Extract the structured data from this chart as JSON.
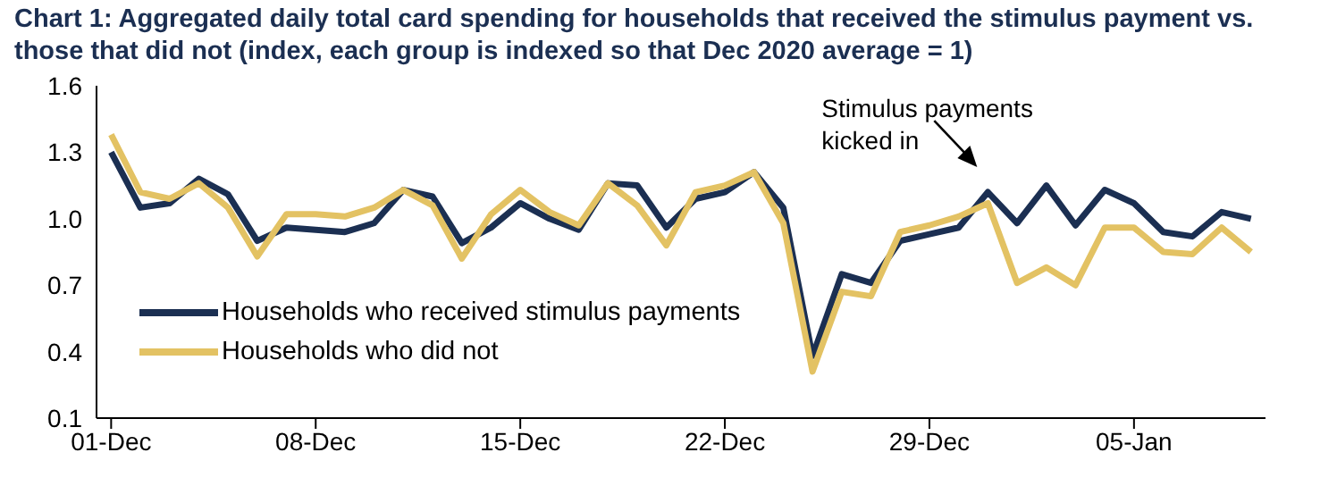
{
  "chart_data": {
    "type": "line",
    "title": "Chart 1: Aggregated daily total card spending for households that received the stimulus payment vs. those that did not (index, each group is indexed so that Dec 2020 average = 1)",
    "x": [
      "2020-12-01",
      "2020-12-02",
      "2020-12-03",
      "2020-12-04",
      "2020-12-05",
      "2020-12-06",
      "2020-12-07",
      "2020-12-08",
      "2020-12-09",
      "2020-12-10",
      "2020-12-11",
      "2020-12-12",
      "2020-12-13",
      "2020-12-14",
      "2020-12-15",
      "2020-12-16",
      "2020-12-17",
      "2020-12-18",
      "2020-12-19",
      "2020-12-20",
      "2020-12-21",
      "2020-12-22",
      "2020-12-23",
      "2020-12-24",
      "2020-12-25",
      "2020-12-26",
      "2020-12-27",
      "2020-12-28",
      "2020-12-29",
      "2020-12-30",
      "2020-12-31",
      "2021-01-01",
      "2021-01-02",
      "2021-01-03",
      "2021-01-04",
      "2021-01-05",
      "2021-01-06",
      "2021-01-07",
      "2021-01-08",
      "2021-01-09"
    ],
    "series": [
      {
        "name": "Households who received stimulus payments",
        "color": "#1b2f52",
        "values": [
          1.3,
          1.05,
          1.07,
          1.18,
          1.11,
          0.9,
          0.96,
          0.95,
          0.94,
          0.98,
          1.13,
          1.1,
          0.89,
          0.96,
          1.07,
          1.0,
          0.95,
          1.16,
          1.15,
          0.96,
          1.09,
          1.12,
          1.21,
          1.05,
          0.38,
          0.75,
          0.71,
          0.9,
          0.93,
          0.96,
          1.12,
          0.98,
          1.15,
          0.97,
          1.13,
          1.07,
          0.94,
          0.92,
          1.03,
          1.0
        ]
      },
      {
        "name": "Households who did not",
        "color": "#e3c263",
        "values": [
          1.38,
          1.12,
          1.09,
          1.16,
          1.05,
          0.83,
          1.02,
          1.02,
          1.01,
          1.05,
          1.13,
          1.06,
          0.82,
          1.02,
          1.13,
          1.03,
          0.97,
          1.16,
          1.06,
          0.88,
          1.12,
          1.15,
          1.21,
          0.98,
          0.31,
          0.67,
          0.65,
          0.94,
          0.97,
          1.01,
          1.07,
          0.71,
          0.78,
          0.7,
          0.96,
          0.96,
          0.85,
          0.84,
          0.96,
          0.85
        ]
      }
    ],
    "xlim": [
      "2020-11-30T12:00",
      "2021-01-09T12:00"
    ],
    "xticks": [
      {
        "value": "2020-12-01",
        "label": "01-Dec"
      },
      {
        "value": "2020-12-08",
        "label": "08-Dec"
      },
      {
        "value": "2020-12-15",
        "label": "15-Dec"
      },
      {
        "value": "2020-12-22",
        "label": "22-Dec"
      },
      {
        "value": "2020-12-29",
        "label": "29-Dec"
      },
      {
        "value": "2021-01-05",
        "label": "05-Jan"
      }
    ],
    "ylim": [
      0.1,
      1.6
    ],
    "yticks": [
      0.1,
      0.4,
      0.7,
      {
        "value": 1,
        "label": "1.0"
      },
      1.3,
      1.6
    ],
    "annotations": [
      {
        "text": "Stimulus payments kicked in",
        "x": "2020-12-31",
        "y": 1.12
      }
    ],
    "grid": false,
    "legend": "bottom left",
    "marker": "none",
    "line_style": "solid"
  }
}
